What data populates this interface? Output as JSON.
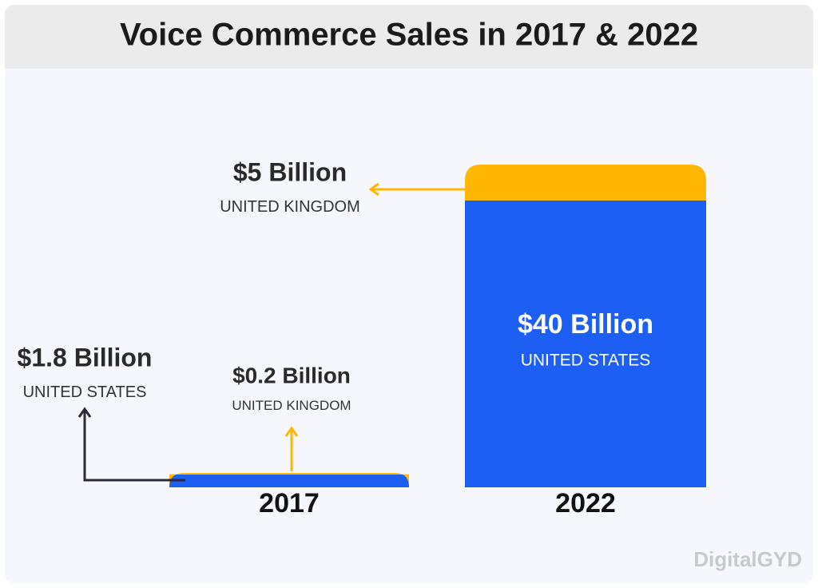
{
  "chart_data": {
    "type": "bar",
    "stacked": true,
    "title": "Voice Commerce Sales in 2017 & 2022",
    "categories": [
      "2017",
      "2022"
    ],
    "series": [
      {
        "name": "UNITED STATES",
        "color": "#1c5ff2",
        "values": [
          1.8,
          40
        ],
        "value_labels": [
          "$1.8 Billion",
          "$40 Billion"
        ]
      },
      {
        "name": "UNITED KINGDOM",
        "color": "#ffb703",
        "values": [
          0.2,
          5
        ],
        "value_labels": [
          "$0.2 Billion",
          "$5 Billion"
        ]
      }
    ]
  },
  "watermark": "DigitalGYD"
}
